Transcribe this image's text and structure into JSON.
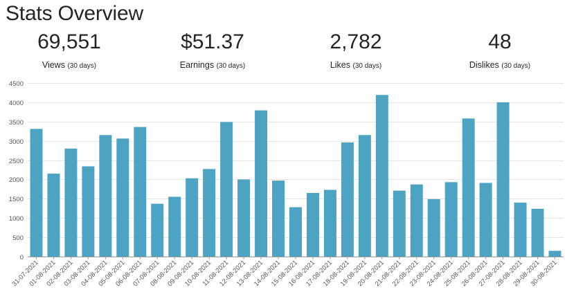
{
  "page": {
    "title": "Stats Overview"
  },
  "stats": [
    {
      "value": "69,551",
      "label": "Views",
      "period": "(30 days)"
    },
    {
      "value": "$51.37",
      "label": "Earnings",
      "period": "(30 days)"
    },
    {
      "value": "2,782",
      "label": "Likes",
      "period": "(30 days)"
    },
    {
      "value": "48",
      "label": "Dislikes",
      "period": "(30 days)"
    }
  ],
  "colors": {
    "bar": "#4da3c2",
    "grid": "#e6e6e6",
    "text": "#212529"
  },
  "chart_data": {
    "type": "bar",
    "title": "",
    "xlabel": "",
    "ylabel": "",
    "ylim": [
      0,
      4500
    ],
    "yticks": [
      0,
      500,
      1000,
      1500,
      2000,
      2500,
      3000,
      3500,
      4000,
      4500
    ],
    "grid": true,
    "categories": [
      "31-07-2021",
      "01-08-2021",
      "02-08-2021",
      "03-08-2021",
      "04-08-2021",
      "05-08-2021",
      "06-08-2021",
      "07-08-2021",
      "08-08-2021",
      "09-08-2021",
      "10-08-2021",
      "11-08-2021",
      "12-08-2021",
      "13-08-2021",
      "14-08-2021",
      "15-08-2021",
      "16-08-2021",
      "17-08-2021",
      "18-08-2021",
      "19-08-2021",
      "20-08-2021",
      "21-08-2021",
      "22-08-2021",
      "23-08-2021",
      "24-08-2021",
      "25-08-2021",
      "26-08-2021",
      "27-08-2021",
      "28-08-2021",
      "29-08-2021",
      "30-08-2021"
    ],
    "values": [
      3310,
      2150,
      2800,
      2340,
      3150,
      3060,
      3360,
      1370,
      1550,
      2030,
      2270,
      3490,
      2000,
      3790,
      1970,
      1280,
      1650,
      1730,
      2960,
      3150,
      4190,
      1710,
      1870,
      1490,
      1930,
      3580,
      1910,
      4000,
      1400,
      1240,
      150
    ]
  }
}
